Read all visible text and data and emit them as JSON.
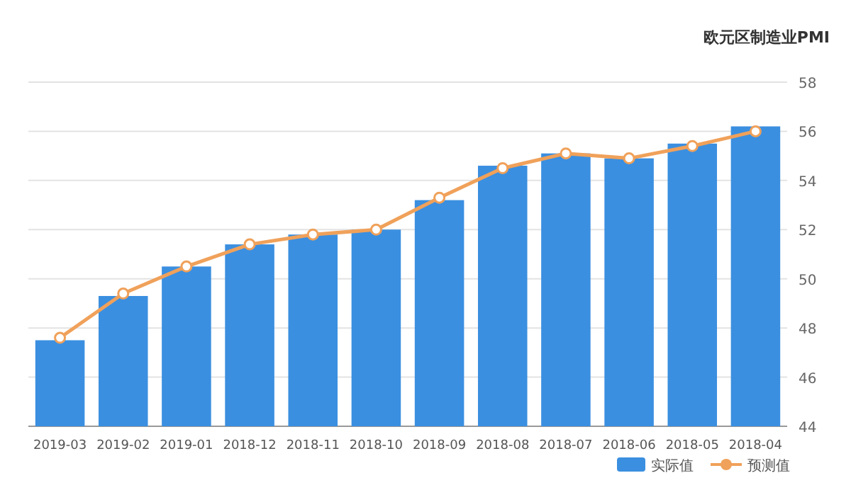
{
  "chart_data": {
    "type": "bar",
    "title": "欧元区制造业PMI",
    "categories": [
      "2019-03",
      "2019-02",
      "2019-01",
      "2018-12",
      "2018-11",
      "2018-10",
      "2018-09",
      "2018-08",
      "2018-07",
      "2018-06",
      "2018-05",
      "2018-04"
    ],
    "series": [
      {
        "name": "实际值",
        "color": "#3b8fe0",
        "values": [
          47.5,
          49.3,
          50.5,
          51.4,
          51.8,
          52.0,
          53.2,
          54.6,
          55.1,
          54.9,
          55.5,
          56.2
        ]
      },
      {
        "name": "预测值",
        "type": "line",
        "color": "#f0a15a",
        "marker": "circle",
        "values": [
          47.6,
          49.4,
          50.5,
          51.4,
          51.8,
          52.0,
          53.3,
          54.5,
          55.1,
          54.9,
          55.4,
          56.0
        ]
      }
    ],
    "ylim": [
      44,
      58
    ],
    "yticks": [
      44,
      46,
      48,
      50,
      52,
      54,
      56,
      58
    ],
    "grid": "y",
    "legend": "bottom right"
  }
}
